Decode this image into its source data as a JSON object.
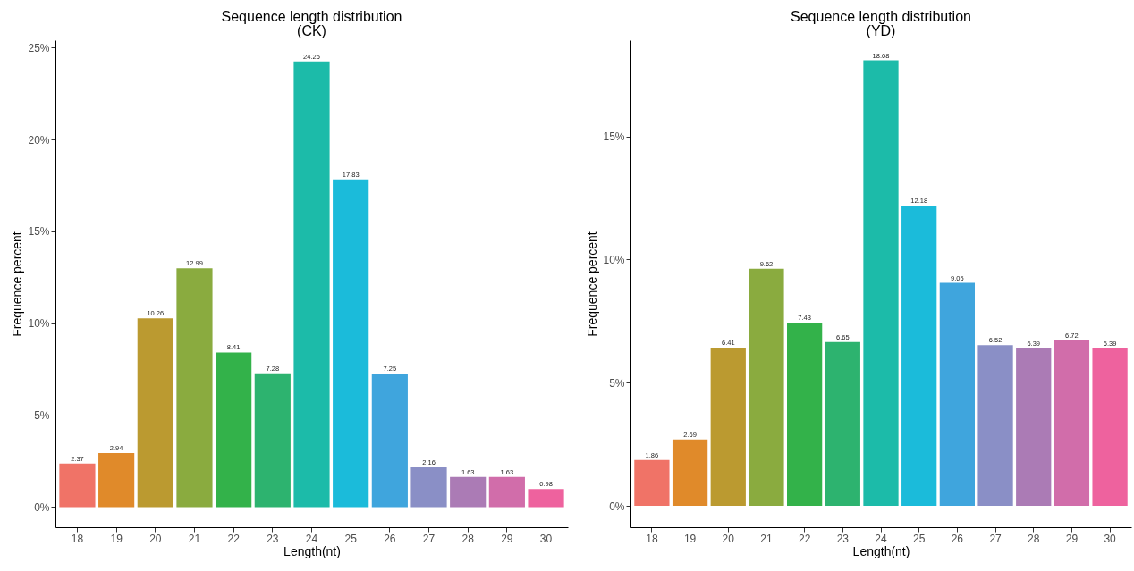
{
  "chart_data": [
    {
      "type": "bar",
      "title": "Sequence length distribution",
      "subtitle": "(CK)",
      "xlabel": "Length(nt)",
      "ylabel": "Frequence percent",
      "categories": [
        "18",
        "19",
        "20",
        "21",
        "22",
        "23",
        "24",
        "25",
        "26",
        "27",
        "28",
        "29",
        "30"
      ],
      "values": [
        2.37,
        2.94,
        10.26,
        12.99,
        8.41,
        7.28,
        24.25,
        17.83,
        7.25,
        2.16,
        1.63,
        1.63,
        0.98
      ],
      "colors": [
        "#f07367",
        "#e08a2a",
        "#bb9a30",
        "#8aab3f",
        "#33b24a",
        "#2db36f",
        "#1cbba9",
        "#1bbbda",
        "#3fa5dd",
        "#8a8fc6",
        "#ab7bb5",
        "#d16daa",
        "#ee629e"
      ],
      "ylim": [
        -1.1,
        25.4
      ],
      "yticks": [
        {
          "value": 0,
          "label": "0%"
        },
        {
          "value": 5,
          "label": "5%"
        },
        {
          "value": 10,
          "label": "10%"
        },
        {
          "value": 15,
          "label": "15%"
        },
        {
          "value": 20,
          "label": "20%"
        },
        {
          "value": 25,
          "label": "25%"
        }
      ],
      "data_labels": true
    },
    {
      "type": "bar",
      "title": "Sequence length distribution",
      "subtitle": "(YD)",
      "xlabel": "Length(nt)",
      "ylabel": "Frequence percent",
      "categories": [
        "18",
        "19",
        "20",
        "21",
        "22",
        "23",
        "24",
        "25",
        "26",
        "27",
        "28",
        "29",
        "30"
      ],
      "values": [
        1.86,
        2.69,
        6.41,
        9.62,
        7.43,
        6.65,
        18.08,
        12.18,
        9.05,
        6.52,
        6.39,
        6.72,
        6.39
      ],
      "colors": [
        "#f07367",
        "#e08a2a",
        "#bb9a30",
        "#8aab3f",
        "#33b24a",
        "#2db36f",
        "#1cbba9",
        "#1bbbda",
        "#3fa5dd",
        "#8a8fc6",
        "#ab7bb5",
        "#d16daa",
        "#ee629e"
      ],
      "ylim": [
        -0.87,
        18.9
      ],
      "yticks": [
        {
          "value": 0,
          "label": "0%"
        },
        {
          "value": 5,
          "label": "5%"
        },
        {
          "value": 10,
          "label": "10%"
        },
        {
          "value": 15,
          "label": "15%"
        }
      ],
      "data_labels": true
    }
  ]
}
